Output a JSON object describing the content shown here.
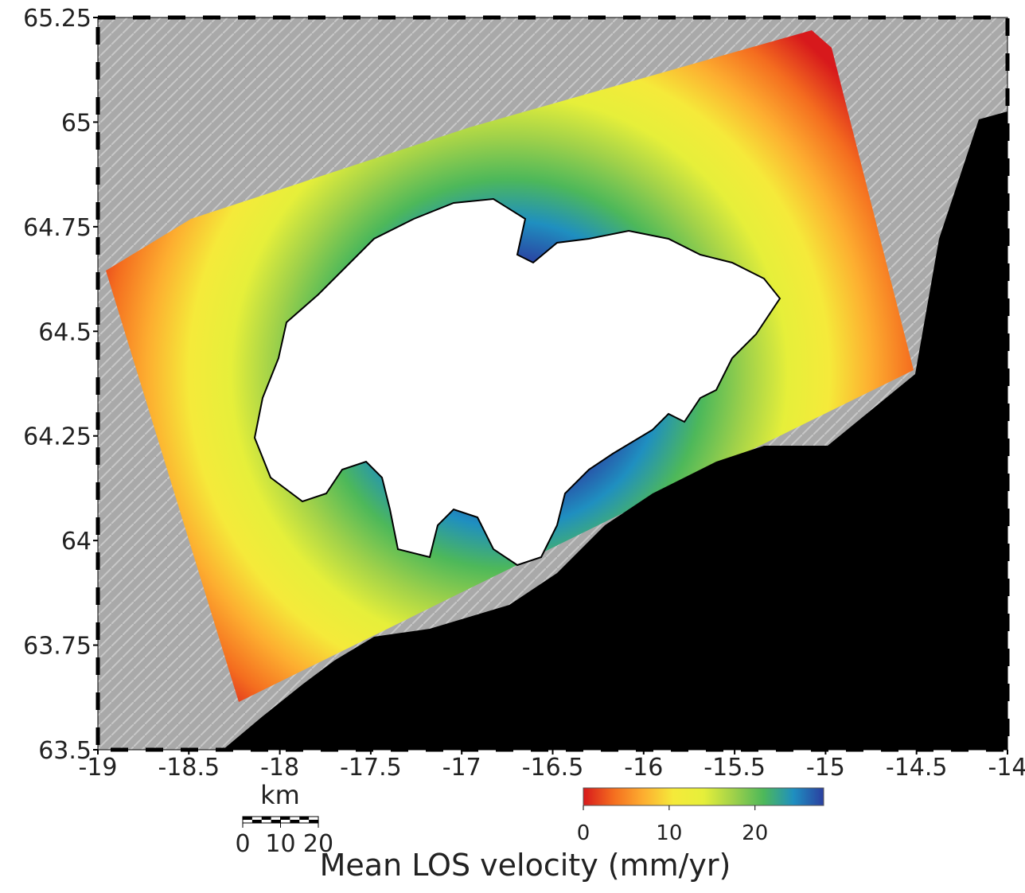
{
  "chart_data": {
    "type": "map",
    "xlim": [
      -19,
      -14
    ],
    "ylim": [
      63.5,
      65.25
    ],
    "xticks": [
      -19,
      -18.5,
      -18,
      -17.5,
      -17,
      -16.5,
      -16,
      -15.5,
      -15,
      -14.5,
      -14
    ],
    "yticks": [
      63.5,
      63.75,
      64,
      64.25,
      64.5,
      64.75,
      65,
      65.25
    ],
    "colorbar": {
      "label": "Mean LOS velocity (mm/yr)",
      "lim": [
        0,
        28
      ],
      "ticks": [
        0,
        10,
        20
      ],
      "colors": [
        "#d7191c",
        "#f46d1f",
        "#fdae30",
        "#f5ea3a",
        "#e6ef3a",
        "#9fd14a",
        "#4db85a",
        "#1f8fc0",
        "#2b3fa0"
      ]
    },
    "scalebar": {
      "unit": "km",
      "ticks": [
        0,
        10,
        20
      ]
    }
  }
}
